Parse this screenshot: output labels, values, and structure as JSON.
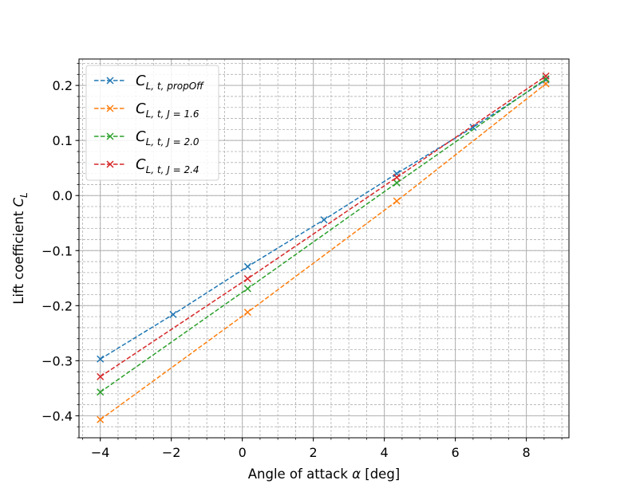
{
  "chart_data": {
    "type": "line",
    "xlabel_text": "Angle of attack",
    "xlabel_symbol": "α",
    "xlabel_unit": "[deg]",
    "ylabel_text": "Lift coefficient",
    "ylabel_symbol": "C",
    "ylabel_sub": "L",
    "xlim": [
      -4.6,
      9.2
    ],
    "ylim": [
      -0.44,
      0.248
    ],
    "x_ticks": [
      -4,
      -2,
      0,
      2,
      4,
      6,
      8
    ],
    "y_ticks": [
      -0.4,
      -0.3,
      -0.2,
      -0.1,
      0.0,
      0.1,
      0.2
    ],
    "x_tick_labels": [
      "−4",
      "−2",
      "0",
      "2",
      "4",
      "6",
      "8"
    ],
    "y_tick_labels": [
      "−0.4",
      "−0.3",
      "−0.2",
      "−0.1",
      "0.0",
      "0.1",
      "0.2"
    ],
    "grid": "major and minor",
    "legend_position": "upper-left",
    "series": [
      {
        "name": "C_{L,t,propOff}",
        "legend_main": "C",
        "legend_sub": "L, t, propOff",
        "color": "#1f77b4",
        "x": [
          -4.0,
          -1.95,
          0.15,
          2.3,
          4.35,
          6.5,
          8.55
        ],
        "y": [
          -0.297,
          -0.216,
          -0.129,
          -0.044,
          0.04,
          0.124,
          0.21
        ]
      },
      {
        "name": "C_{L,t,J=1.6}",
        "legend_main": "C",
        "legend_sub": "L, t, J = 1.6",
        "color": "#ff7f0e",
        "x": [
          -4.0,
          0.15,
          4.35,
          8.55
        ],
        "y": [
          -0.407,
          -0.212,
          -0.01,
          0.203
        ]
      },
      {
        "name": "C_{L,t,J=2.0}",
        "legend_main": "C",
        "legend_sub": "L, t, J = 2.0",
        "color": "#2ca02c",
        "x": [
          -4.0,
          0.15,
          4.35,
          8.55
        ],
        "y": [
          -0.357,
          -0.169,
          0.023,
          0.212
        ]
      },
      {
        "name": "C_{L,t,J=2.4}",
        "legend_main": "C",
        "legend_sub": "L, t, J = 2.4",
        "color": "#d62728",
        "x": [
          -4.0,
          0.15,
          4.35,
          8.55
        ],
        "y": [
          -0.329,
          -0.151,
          0.033,
          0.217
        ]
      }
    ]
  }
}
